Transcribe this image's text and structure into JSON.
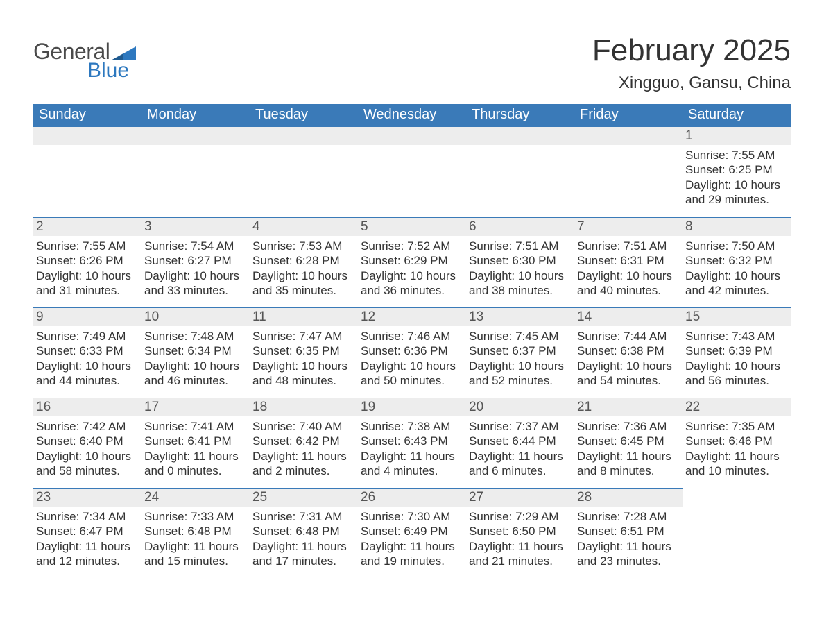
{
  "brand": {
    "general": "General",
    "blue": "Blue",
    "flag_color": "#2d78bf"
  },
  "title": {
    "month": "February 2025",
    "location": "Xingguo, Gansu, China"
  },
  "styling": {
    "header_bg": "#3a7ab8",
    "header_text": "#ffffff",
    "daynum_bg": "#ededed",
    "border_color": "#3a7ab8",
    "body_text": "#333333",
    "font_family": "Segoe UI"
  },
  "weekdays": [
    "Sunday",
    "Monday",
    "Tuesday",
    "Wednesday",
    "Thursday",
    "Friday",
    "Saturday"
  ],
  "labels": {
    "sunrise": "Sunrise:",
    "sunset": "Sunset:",
    "daylight": "Daylight:"
  },
  "weeks": [
    [
      {
        "empty": true
      },
      {
        "empty": true
      },
      {
        "empty": true
      },
      {
        "empty": true
      },
      {
        "empty": true
      },
      {
        "empty": true
      },
      {
        "day": "1",
        "sunrise": "7:55 AM",
        "sunset": "6:25 PM",
        "daylight_a": "10 hours",
        "daylight_b": "and 29 minutes."
      }
    ],
    [
      {
        "day": "2",
        "sunrise": "7:55 AM",
        "sunset": "6:26 PM",
        "daylight_a": "10 hours",
        "daylight_b": "and 31 minutes."
      },
      {
        "day": "3",
        "sunrise": "7:54 AM",
        "sunset": "6:27 PM",
        "daylight_a": "10 hours",
        "daylight_b": "and 33 minutes."
      },
      {
        "day": "4",
        "sunrise": "7:53 AM",
        "sunset": "6:28 PM",
        "daylight_a": "10 hours",
        "daylight_b": "and 35 minutes."
      },
      {
        "day": "5",
        "sunrise": "7:52 AM",
        "sunset": "6:29 PM",
        "daylight_a": "10 hours",
        "daylight_b": "and 36 minutes."
      },
      {
        "day": "6",
        "sunrise": "7:51 AM",
        "sunset": "6:30 PM",
        "daylight_a": "10 hours",
        "daylight_b": "and 38 minutes."
      },
      {
        "day": "7",
        "sunrise": "7:51 AM",
        "sunset": "6:31 PM",
        "daylight_a": "10 hours",
        "daylight_b": "and 40 minutes."
      },
      {
        "day": "8",
        "sunrise": "7:50 AM",
        "sunset": "6:32 PM",
        "daylight_a": "10 hours",
        "daylight_b": "and 42 minutes."
      }
    ],
    [
      {
        "day": "9",
        "sunrise": "7:49 AM",
        "sunset": "6:33 PM",
        "daylight_a": "10 hours",
        "daylight_b": "and 44 minutes."
      },
      {
        "day": "10",
        "sunrise": "7:48 AM",
        "sunset": "6:34 PM",
        "daylight_a": "10 hours",
        "daylight_b": "and 46 minutes."
      },
      {
        "day": "11",
        "sunrise": "7:47 AM",
        "sunset": "6:35 PM",
        "daylight_a": "10 hours",
        "daylight_b": "and 48 minutes."
      },
      {
        "day": "12",
        "sunrise": "7:46 AM",
        "sunset": "6:36 PM",
        "daylight_a": "10 hours",
        "daylight_b": "and 50 minutes."
      },
      {
        "day": "13",
        "sunrise": "7:45 AM",
        "sunset": "6:37 PM",
        "daylight_a": "10 hours",
        "daylight_b": "and 52 minutes."
      },
      {
        "day": "14",
        "sunrise": "7:44 AM",
        "sunset": "6:38 PM",
        "daylight_a": "10 hours",
        "daylight_b": "and 54 minutes."
      },
      {
        "day": "15",
        "sunrise": "7:43 AM",
        "sunset": "6:39 PM",
        "daylight_a": "10 hours",
        "daylight_b": "and 56 minutes."
      }
    ],
    [
      {
        "day": "16",
        "sunrise": "7:42 AM",
        "sunset": "6:40 PM",
        "daylight_a": "10 hours",
        "daylight_b": "and 58 minutes."
      },
      {
        "day": "17",
        "sunrise": "7:41 AM",
        "sunset": "6:41 PM",
        "daylight_a": "11 hours",
        "daylight_b": "and 0 minutes."
      },
      {
        "day": "18",
        "sunrise": "7:40 AM",
        "sunset": "6:42 PM",
        "daylight_a": "11 hours",
        "daylight_b": "and 2 minutes."
      },
      {
        "day": "19",
        "sunrise": "7:38 AM",
        "sunset": "6:43 PM",
        "daylight_a": "11 hours",
        "daylight_b": "and 4 minutes."
      },
      {
        "day": "20",
        "sunrise": "7:37 AM",
        "sunset": "6:44 PM",
        "daylight_a": "11 hours",
        "daylight_b": "and 6 minutes."
      },
      {
        "day": "21",
        "sunrise": "7:36 AM",
        "sunset": "6:45 PM",
        "daylight_a": "11 hours",
        "daylight_b": "and 8 minutes."
      },
      {
        "day": "22",
        "sunrise": "7:35 AM",
        "sunset": "6:46 PM",
        "daylight_a": "11 hours",
        "daylight_b": "and 10 minutes."
      }
    ],
    [
      {
        "day": "23",
        "sunrise": "7:34 AM",
        "sunset": "6:47 PM",
        "daylight_a": "11 hours",
        "daylight_b": "and 12 minutes."
      },
      {
        "day": "24",
        "sunrise": "7:33 AM",
        "sunset": "6:48 PM",
        "daylight_a": "11 hours",
        "daylight_b": "and 15 minutes."
      },
      {
        "day": "25",
        "sunrise": "7:31 AM",
        "sunset": "6:48 PM",
        "daylight_a": "11 hours",
        "daylight_b": "and 17 minutes."
      },
      {
        "day": "26",
        "sunrise": "7:30 AM",
        "sunset": "6:49 PM",
        "daylight_a": "11 hours",
        "daylight_b": "and 19 minutes."
      },
      {
        "day": "27",
        "sunrise": "7:29 AM",
        "sunset": "6:50 PM",
        "daylight_a": "11 hours",
        "daylight_b": "and 21 minutes."
      },
      {
        "day": "28",
        "sunrise": "7:28 AM",
        "sunset": "6:51 PM",
        "daylight_a": "11 hours",
        "daylight_b": "and 23 minutes."
      },
      {
        "empty": true,
        "blank": true
      }
    ]
  ]
}
